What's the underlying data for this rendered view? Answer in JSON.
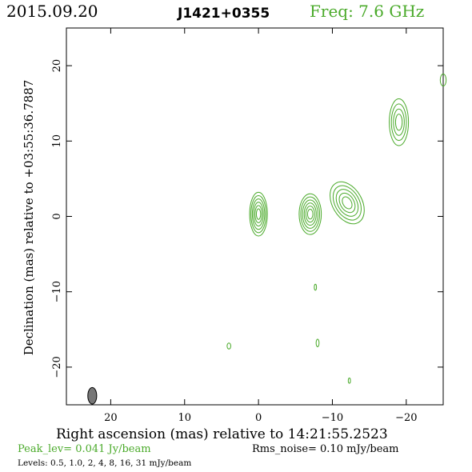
{
  "header": {
    "date": "2015.09.20",
    "source": "J1421+0355",
    "freq": "Freq: 7.6 GHz"
  },
  "footer": {
    "xlabel": "Right ascension (mas) relative to 14:21:55.2523",
    "peak": "Peak_lev=  0.041 Jy/beam",
    "rms": "Rms_noise= 0.10 mJy/beam",
    "levels": "Levels: 0.5, 1.0,    2,    4,    8,   16,   31 mJy/beam"
  },
  "colors": {
    "contour": "#4aaa2a",
    "frame": "#000000",
    "beam": "#777777"
  },
  "chart_data": {
    "type": "contour",
    "ylabel": "Declination (mas) relative to +03:55:36.7887",
    "xlabel": "Right ascension (mas) relative to 14:21:55.2523",
    "xlim": [
      26,
      -25
    ],
    "ylim": [
      -25,
      25
    ],
    "xticks": [
      20,
      10,
      0,
      -10,
      -20
    ],
    "xtick_labels": [
      "20",
      "10",
      "0",
      "−10",
      "−20"
    ],
    "yticks": [
      20,
      10,
      0,
      -10,
      -20
    ],
    "ytick_labels": [
      "20",
      "10",
      "0",
      "−10",
      "−20"
    ],
    "levels_mJy": [
      0.5,
      1.0,
      2,
      4,
      8,
      16,
      31
    ],
    "components": [
      {
        "x": 0.0,
        "y": 0.3,
        "rx": 1.2,
        "ry": 2.9,
        "n": 6
      },
      {
        "x": -7.0,
        "y": 0.3,
        "rx": 1.5,
        "ry": 2.7,
        "n": 6
      },
      {
        "x": -12.0,
        "y": 1.8,
        "rx": 2.0,
        "ry": 3.0,
        "n": 5,
        "angle": -30
      },
      {
        "x": -19.0,
        "y": 12.5,
        "rx": 1.3,
        "ry": 3.1,
        "n": 4
      },
      {
        "x": -25.0,
        "y": 18.1,
        "rx": 0.4,
        "ry": 0.8,
        "n": 1
      },
      {
        "x": 4.0,
        "y": -17.2,
        "rx": 0.25,
        "ry": 0.4,
        "n": 1
      },
      {
        "x": -7.7,
        "y": -9.4,
        "rx": 0.15,
        "ry": 0.4,
        "n": 1
      },
      {
        "x": -8.0,
        "y": -16.8,
        "rx": 0.2,
        "ry": 0.5,
        "n": 1
      },
      {
        "x": -12.3,
        "y": -21.8,
        "rx": 0.15,
        "ry": 0.35,
        "n": 1
      }
    ],
    "beam": {
      "x": 22.5,
      "y": -23.8,
      "rx": 0.6,
      "ry": 1.1
    }
  }
}
